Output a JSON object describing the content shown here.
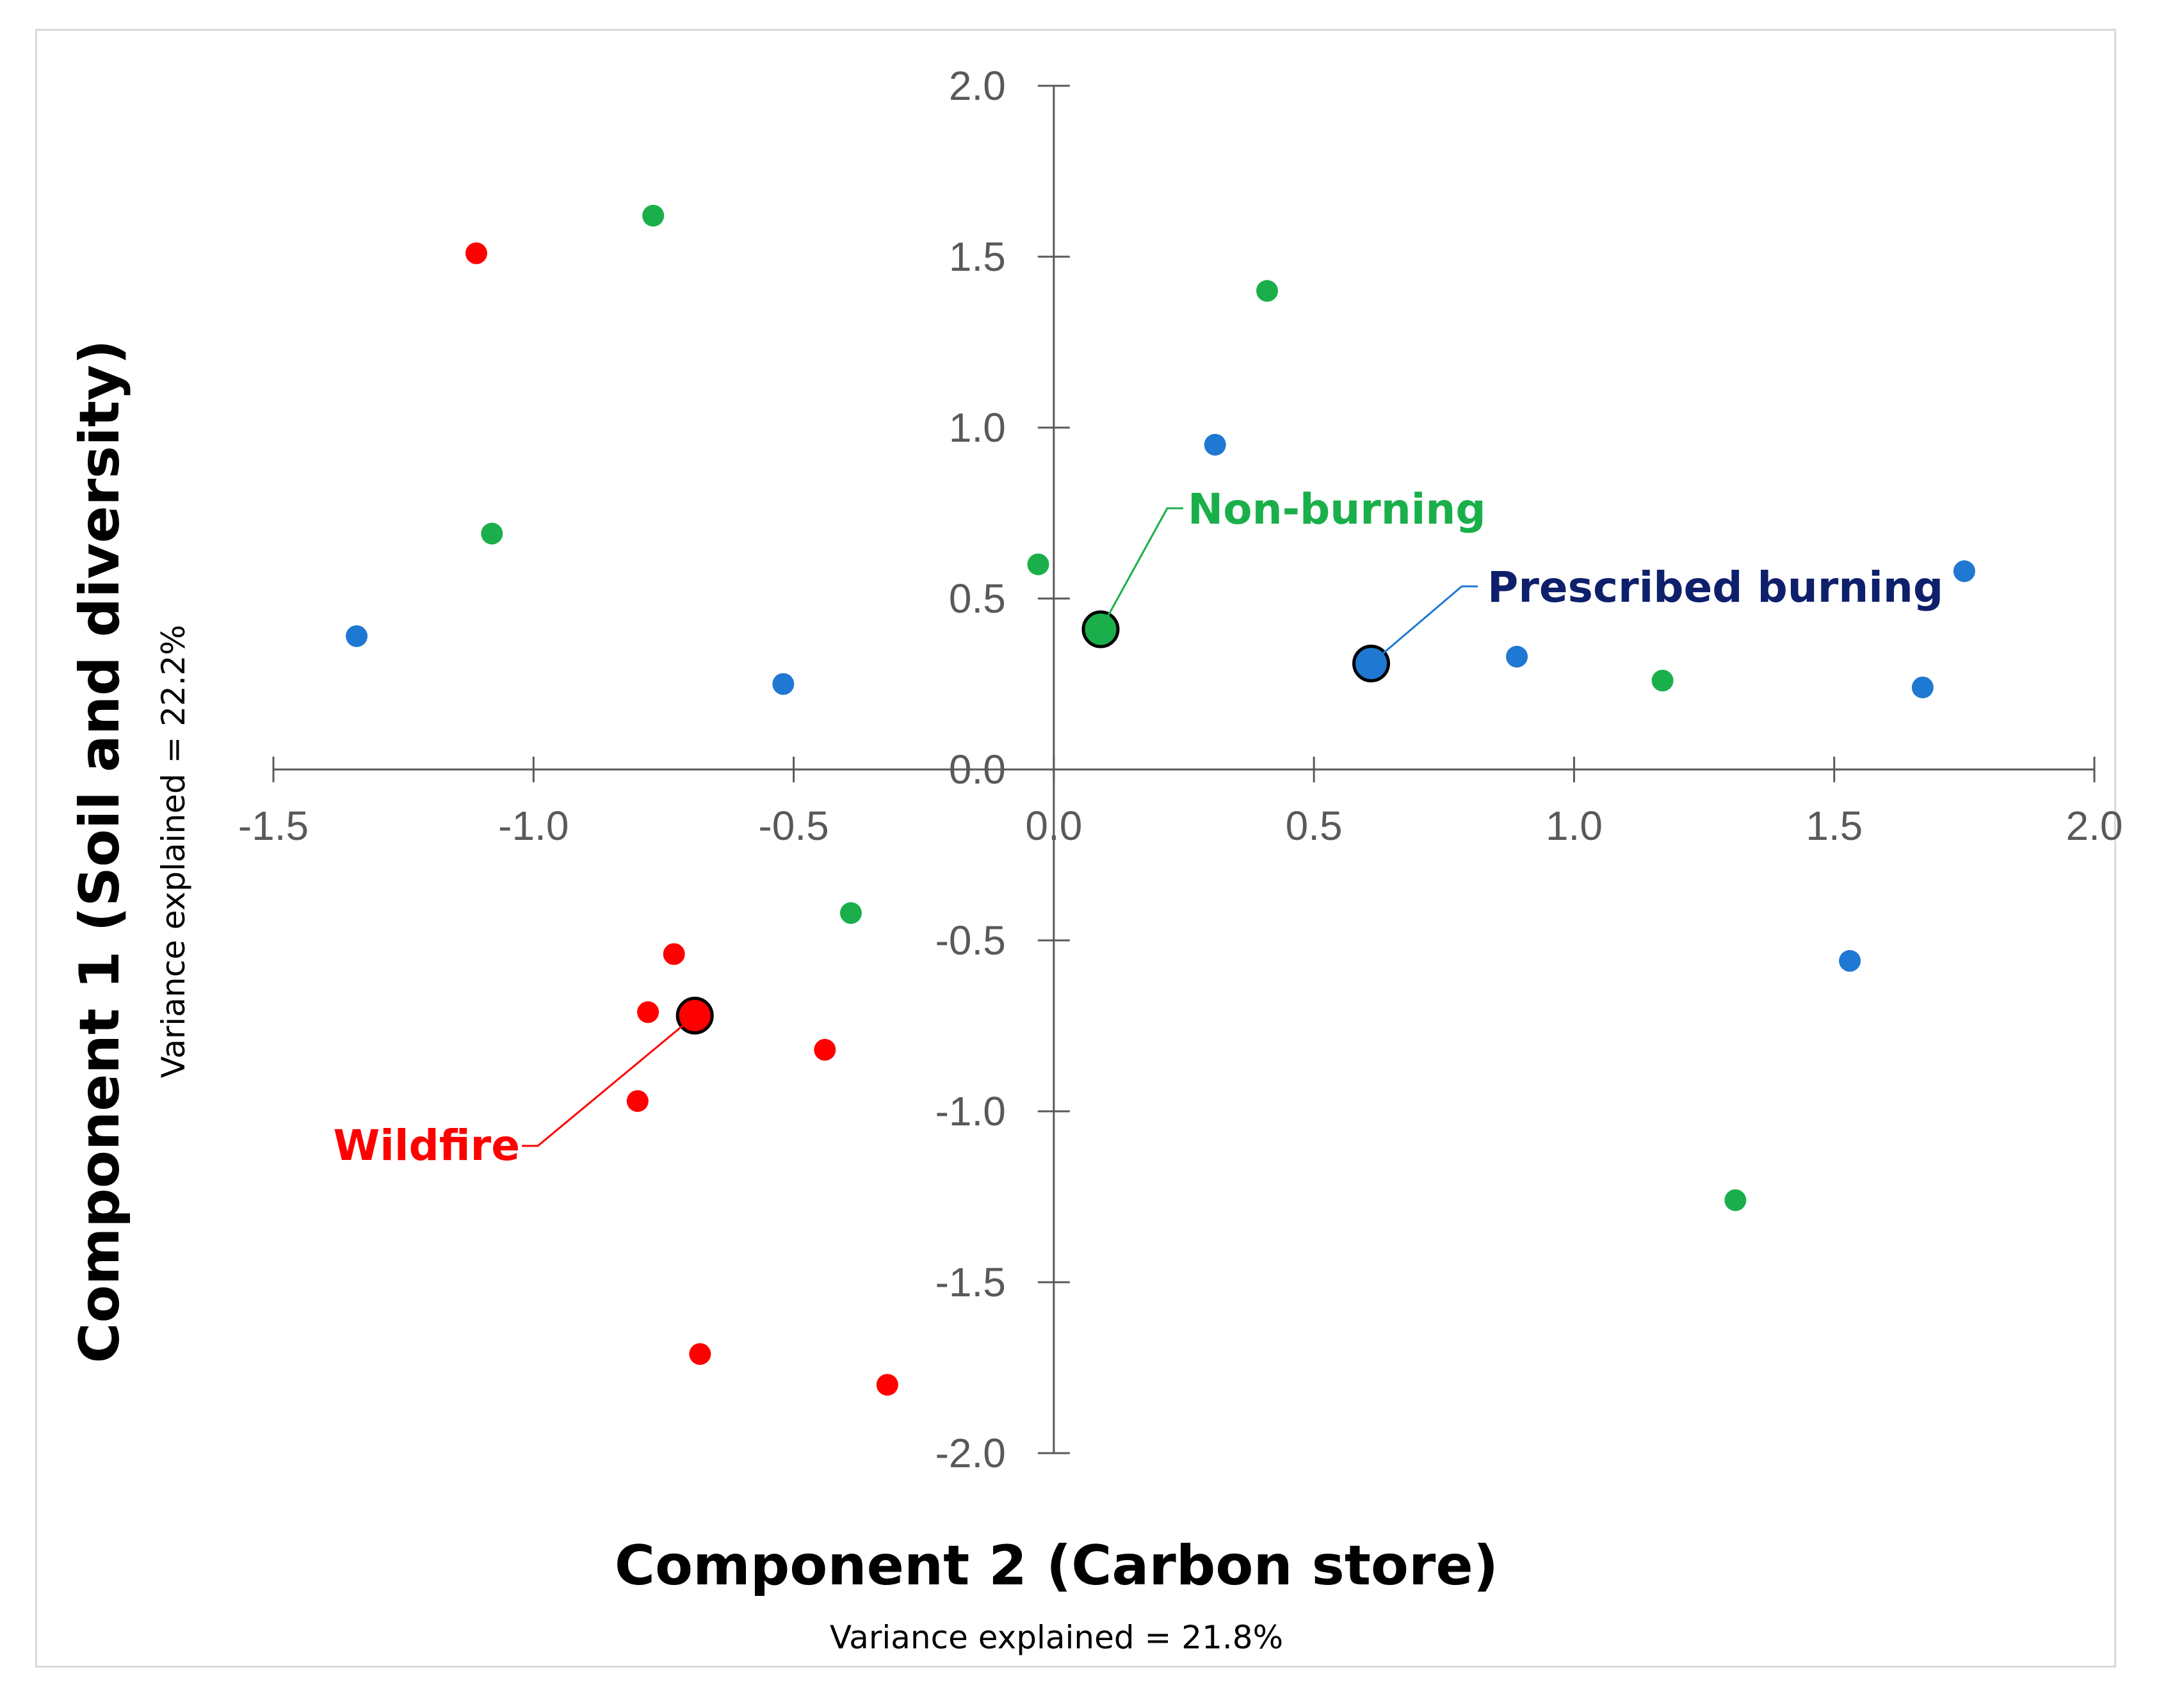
{
  "chart_data": {
    "type": "scatter",
    "xlabel": "Component 2 (Carbon store)",
    "xsub": "Variance explained = 21.8%",
    "ylabel": "Component 1 (Soil and diversity)",
    "ysub": "Variance explained = 22.2%",
    "xlim": [
      -1.5,
      2.0
    ],
    "ylim": [
      -2.0,
      2.0
    ],
    "xticks": [
      "-1.5",
      "-1.0",
      "-0.5",
      "0.0",
      "0.5",
      "1.0",
      "1.5",
      "2.0"
    ],
    "yticks": [
      "2.0",
      "1.5",
      "1.0",
      "0.5",
      "0.0",
      "-0.5",
      "-1.0",
      "-1.5",
      "-2.0"
    ],
    "series": [
      {
        "name": "Wildfire",
        "color": "#ff0000",
        "label_color": "#ff0000",
        "points": [
          {
            "x": -1.11,
            "y": 1.51
          },
          {
            "x": -0.73,
            "y": -0.54
          },
          {
            "x": -0.78,
            "y": -0.71
          },
          {
            "x": -0.44,
            "y": -0.82
          },
          {
            "x": -0.8,
            "y": -0.97
          },
          {
            "x": -0.68,
            "y": -1.71
          },
          {
            "x": -0.32,
            "y": -1.8
          }
        ],
        "centroid": {
          "x": -0.69,
          "y": -0.72
        }
      },
      {
        "name": "Non-burning",
        "color": "#1aaf4a",
        "label_color": "#1aaf4a",
        "points": [
          {
            "x": -0.77,
            "y": 1.62
          },
          {
            "x": 0.41,
            "y": 1.4
          },
          {
            "x": -1.08,
            "y": 0.69
          },
          {
            "x": -0.03,
            "y": 0.6
          },
          {
            "x": 1.17,
            "y": 0.26
          },
          {
            "x": -0.39,
            "y": -0.42
          },
          {
            "x": 1.31,
            "y": -1.26
          }
        ],
        "centroid": {
          "x": 0.09,
          "y": 0.41
        }
      },
      {
        "name": "Prescribed burning",
        "color": "#1f78d1",
        "label_color": "#0e1f6b",
        "points": [
          {
            "x": 0.31,
            "y": 0.95
          },
          {
            "x": -1.34,
            "y": 0.39
          },
          {
            "x": -0.52,
            "y": 0.25
          },
          {
            "x": 1.75,
            "y": 0.58
          },
          {
            "x": 0.89,
            "y": 0.33
          },
          {
            "x": 1.67,
            "y": 0.24
          },
          {
            "x": 1.53,
            "y": -0.56
          }
        ],
        "centroid": {
          "x": 0.61,
          "y": 0.31
        }
      }
    ]
  }
}
